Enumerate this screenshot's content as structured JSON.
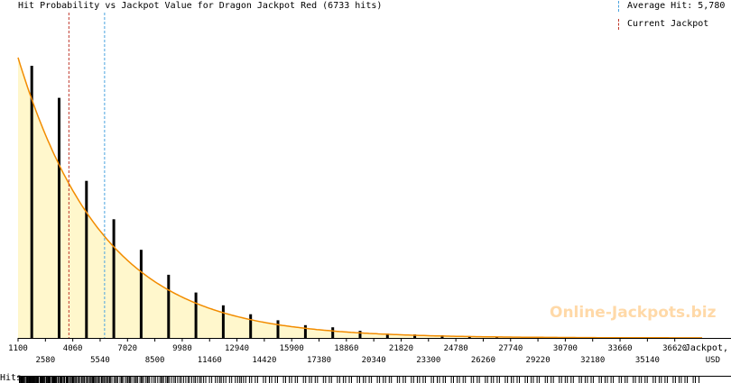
{
  "chart_data": {
    "type": "bar",
    "title": "Hit Probability vs Jackpot Value for Dragon Jackpot Red (6733 hits)",
    "xlabel_line1": "Jackpot,",
    "xlabel_line2": "USD",
    "x_range": [
      1100,
      38100
    ],
    "tick_labels_top": [
      "1100",
      "4060",
      "7020",
      "9980",
      "12940",
      "15900",
      "18860",
      "21820",
      "24780",
      "27740",
      "30700",
      "33660",
      "36620"
    ],
    "tick_labels_bottom": [
      "2580",
      "5540",
      "8500",
      "11460",
      "14420",
      "17380",
      "20340",
      "23300",
      "26260",
      "29220",
      "32180",
      "35140"
    ],
    "bars": [
      {
        "x": 1840,
        "p": 1.0
      },
      {
        "x": 3320,
        "p": 0.882
      },
      {
        "x": 4800,
        "p": 0.577
      },
      {
        "x": 6280,
        "p": 0.436
      },
      {
        "x": 7760,
        "p": 0.324
      },
      {
        "x": 9240,
        "p": 0.232
      },
      {
        "x": 10720,
        "p": 0.167
      },
      {
        "x": 12200,
        "p": 0.12
      },
      {
        "x": 13680,
        "p": 0.087
      },
      {
        "x": 15160,
        "p": 0.065
      },
      {
        "x": 16640,
        "p": 0.047
      },
      {
        "x": 18120,
        "p": 0.039
      },
      {
        "x": 19600,
        "p": 0.026
      },
      {
        "x": 21080,
        "p": 0.016
      },
      {
        "x": 22560,
        "p": 0.013
      },
      {
        "x": 24040,
        "p": 0.01
      },
      {
        "x": 25520,
        "p": 0.006
      },
      {
        "x": 27000,
        "p": 0.005
      },
      {
        "x": 28480,
        "p": 0.004
      },
      {
        "x": 29960,
        "p": 0.003
      },
      {
        "x": 31440,
        "p": 0.002
      },
      {
        "x": 32920,
        "p": 0.002
      },
      {
        "x": 34400,
        "p": 0.001
      },
      {
        "x": 35880,
        "p": 0.001
      },
      {
        "x": 37360,
        "p": 0.001
      }
    ],
    "fit_curve": {
      "start_x": 1100,
      "start_p": 1.0,
      "decay_per_usd": 0.000217
    },
    "average_hit": 5780,
    "current_jackpot": 3850,
    "hit_marks_x": [
      1150,
      1190,
      1230,
      1270,
      1310,
      1350,
      1390,
      1430,
      1470,
      1510,
      1550,
      1590,
      1630,
      1670,
      1710,
      1750,
      1790,
      1830,
      1870,
      1910,
      1950,
      1990,
      2030,
      2070,
      2110,
      2150,
      2190,
      2230,
      2270,
      2310,
      2350,
      2390,
      2430,
      2470,
      2510,
      2550,
      2590,
      2630,
      2670,
      2710,
      2750,
      2790,
      2830,
      2870,
      2910,
      2950,
      2990,
      3030,
      3070,
      3110,
      3150,
      3190,
      3230,
      3270,
      3310,
      3350,
      3390,
      3430,
      3470,
      3510,
      3550,
      3590,
      3630,
      3670,
      3710,
      3750,
      3790,
      3830,
      3870,
      3910,
      3950,
      3990,
      4030,
      4070,
      4110,
      4150,
      4190,
      4230,
      4270,
      4310,
      4350,
      4390,
      4430,
      4470,
      4510,
      4550,
      4590,
      4630,
      4670,
      4710,
      4750,
      4790,
      4830,
      4870,
      4910,
      4950,
      4990,
      5030,
      5070,
      5110,
      5150,
      5190,
      5230,
      5270,
      5310,
      5350,
      5390,
      5430,
      5470,
      5510,
      5550,
      5590,
      5630,
      5670,
      5710,
      5750,
      5790,
      5830,
      5870,
      5910,
      5950,
      5990,
      6030,
      6070,
      6110,
      6150,
      6190,
      6230,
      6270,
      6310,
      6350,
      6390,
      6430,
      6470,
      6510,
      6550,
      6590,
      6630,
      6670,
      6710,
      6750,
      6790,
      6830,
      6870,
      6910,
      6950,
      6990,
      7030,
      7070,
      7110,
      7150,
      7190,
      7230,
      7270,
      7310,
      7350,
      7390,
      7430,
      7470,
      7510,
      7550,
      7590,
      7630,
      7670,
      7710,
      7750,
      7790,
      7830,
      7870,
      7910,
      7950,
      7990,
      8030,
      8070,
      8110,
      8150,
      8190,
      8230,
      8270,
      8310,
      8350,
      8390,
      8430,
      8470,
      8510,
      8550,
      8590,
      8630,
      8670,
      8710,
      8750,
      8790,
      8830,
      8870,
      8910,
      8950,
      8990,
      9030,
      9070,
      9110,
      9150,
      9190,
      9230,
      9270,
      9310,
      9350,
      9390,
      9430,
      9470,
      9510,
      9550,
      9590,
      9630,
      9670,
      9710,
      9750,
      9790,
      9830,
      9870,
      9910,
      9950,
      9990,
      10030,
      10070,
      10110,
      10150,
      10190,
      10230,
      10270,
      10310,
      10350,
      10390,
      10430,
      10470,
      10510,
      10550,
      10590,
      10630,
      10670,
      10710,
      10750,
      10790,
      10830,
      10870,
      10910,
      10950,
      10990,
      11030,
      11070,
      11110,
      11150,
      11190,
      11230,
      11270,
      11310,
      11350,
      11390,
      11430,
      11470,
      11510,
      11550,
      11590,
      11630,
      11670,
      11710,
      11750,
      11790,
      11830,
      11870,
      11910,
      11950,
      11990,
      12030,
      12070,
      12110,
      12150,
      12190,
      12230,
      12270,
      12310,
      12350,
      12390,
      12430,
      12470,
      12510,
      12550,
      12590,
      12630,
      12670,
      12710,
      12750,
      12790,
      12830,
      12870,
      12910,
      12950,
      12990,
      13030,
      13070,
      13110,
      13150,
      13190,
      13230,
      13270,
      13310,
      13350,
      13390,
      13430,
      13470,
      13510,
      13550,
      13590,
      13630,
      13670,
      13710,
      13750,
      13790,
      13830,
      13870,
      13910,
      13950,
      13990,
      14030,
      14070,
      14110,
      14150,
      14190,
      14230,
      14270,
      14310,
      14350,
      14390,
      14430,
      14470,
      14510,
      14550,
      14590,
      14630,
      14670,
      14710,
      14750,
      14790,
      14830,
      14870,
      14910,
      14950,
      14990,
      15030,
      15070,
      15110,
      15150,
      15190,
      15230,
      15270,
      15310,
      15350,
      15390,
      15430,
      15470,
      15510,
      15550,
      15590,
      15630,
      15670,
      15710,
      15750,
      15790,
      15830,
      15870,
      15910,
      15950,
      15990,
      16030,
      16070,
      16110,
      16150,
      16190,
      16230,
      16270,
      16310,
      16350,
      16390,
      16430,
      16470,
      16510,
      16550,
      16590,
      16630,
      16670,
      16710,
      16750,
      16790,
      16830,
      16870,
      16910,
      16950,
      16990,
      17030,
      17070,
      17110,
      17150,
      17190,
      17230,
      17270,
      17310,
      17350,
      17390,
      17430,
      17470,
      17510,
      17550,
      17590,
      17630,
      17670,
      17710,
      17750,
      17790,
      17830,
      17870,
      17910,
      17950,
      17990,
      18030,
      18070,
      18110,
      18150,
      18190,
      18230,
      18270,
      18310,
      18350,
      18390,
      18430,
      18470,
      18510,
      18550,
      18590,
      18630,
      18670,
      18710,
      18750,
      18790,
      18830,
      18870,
      18910,
      18950,
      18990,
      19030,
      19070,
      19110,
      19150,
      19190,
      19230,
      19270,
      19310,
      19350,
      19390,
      19430,
      19470,
      19510,
      19550,
      19590,
      19630,
      19670,
      19710,
      19750,
      19790,
      19830,
      19870,
      19910,
      19950,
      19990,
      20030,
      20070,
      20110,
      20150,
      20190,
      20230,
      20270,
      20310,
      20350,
      20390,
      20430,
      20470,
      20510,
      20550,
      20590,
      20630,
      20670,
      20710,
      20750,
      20790,
      20830,
      20870,
      20910,
      20950,
      20990,
      21030,
      21070,
      21110,
      21150,
      21190,
      21230,
      21270,
      21310,
      21350,
      21390,
      21430,
      21470,
      21510,
      21550,
      21590,
      21630,
      21670,
      21710,
      21750,
      21790,
      21830,
      21870,
      21910,
      21950,
      21990,
      22030,
      22070,
      22110,
      22150,
      22190,
      22230,
      22270,
      22310,
      22350,
      22390,
      22430,
      22470,
      22510,
      22550,
      22590,
      22630,
      22670,
      22710,
      22750,
      22790,
      22830,
      22870,
      22910,
      22950,
      22990,
      23030,
      23070,
      23110,
      23150,
      23190,
      23230,
      23270,
      23310,
      23350,
      23390,
      23430,
      23470,
      23510,
      23550,
      23590,
      23630,
      23670,
      23710,
      23750,
      23790,
      23830,
      23870,
      23910,
      23950,
      23990,
      24030,
      24070,
      24110,
      24150,
      24190,
      24230,
      24270,
      24310,
      24350,
      24390,
      24430,
      24470,
      24510,
      24550,
      24590,
      24630,
      24670,
      24710,
      24750,
      24790,
      24830,
      24870,
      24910,
      24950,
      24990,
      25030,
      25070,
      25110,
      25150,
      25190,
      25230,
      25270,
      25310,
      25350,
      25390,
      25430,
      25470,
      25510,
      25550,
      25590,
      25630,
      25670,
      25710,
      25750,
      25790,
      25830,
      25870,
      25910,
      25950,
      25990,
      26030,
      26070,
      26110,
      26150,
      26190,
      26230,
      26270,
      26310,
      26350,
      26390,
      26430,
      26470,
      26510,
      26550,
      26590,
      26630,
      26670,
      26710,
      26750,
      26790,
      26830,
      26870,
      26910,
      26950,
      26990,
      27030,
      27070,
      27110,
      27150,
      27190,
      27230,
      27270,
      27310,
      27350,
      27390,
      27430,
      27470,
      27510,
      27550,
      27590,
      27630,
      27670,
      27710,
      27750,
      27790,
      27830,
      27870,
      27910,
      27950,
      27990,
      28030,
      28070,
      28110,
      28150,
      28190,
      28230,
      28270,
      28310,
      28350,
      28390,
      28430,
      28470,
      28510,
      28550,
      28590,
      28630,
      28670,
      28710,
      28750,
      28790,
      28830,
      28870,
      28910,
      28950,
      28990,
      29030,
      29070,
      29110,
      29150,
      29190,
      29230,
      29270,
      29310,
      29350,
      29390,
      29430,
      29470,
      29510,
      29550,
      29590,
      29630,
      29670,
      29710,
      29750,
      29790,
      29830,
      29870,
      29910,
      29950,
      29990,
      30030,
      30070,
      30110,
      30150,
      30190,
      30230,
      30270,
      30310,
      30350,
      30390,
      30430,
      30470,
      30510,
      30550,
      30590,
      30630,
      30670,
      30710,
      30750,
      30790,
      30830,
      30870,
      30910,
      30950,
      30990,
      31030,
      31070,
      31110,
      31150,
      31190,
      31230,
      31270,
      31310,
      31350,
      31390,
      31430,
      31470,
      31510,
      31550,
      31590,
      31630,
      31670,
      31710,
      31750,
      31790,
      31830,
      31870,
      31910,
      31950,
      31990,
      32030,
      32070,
      32110,
      32150,
      32190,
      32230,
      32270,
      32310,
      32350,
      32390,
      32430,
      32470,
      32510,
      32550,
      32590,
      32630,
      32670,
      32710,
      32750,
      32790,
      32830,
      32870,
      32910,
      32950,
      32990,
      33030,
      33070,
      33110,
      33150,
      33190,
      33230,
      33270,
      33310,
      33350,
      33390,
      33430,
      33470,
      33510,
      33550,
      33590,
      33630,
      33670,
      33710,
      33750,
      33790,
      33830,
      33870,
      33910,
      33950,
      33990,
      34030,
      34070,
      34110,
      34150,
      34190,
      34230,
      34270,
      34310,
      34350,
      34390,
      34430,
      34470,
      34510,
      34550,
      34590,
      34630,
      34670,
      34710,
      34750,
      34790,
      34830,
      34870,
      34910,
      34950,
      34990,
      35030,
      35070,
      35110,
      35150,
      35190,
      35230,
      35270,
      35310,
      35350,
      35390,
      35430,
      35470,
      35510,
      35550,
      35590,
      35630,
      35670,
      35710,
      35750,
      35790,
      35830,
      35870,
      35910,
      35950,
      35990,
      36030,
      36070,
      36110,
      36150,
      36190,
      36230,
      36270,
      36310,
      36350,
      36390,
      36430,
      36470,
      36510,
      36550,
      36590,
      36630,
      36670,
      36710,
      36750,
      36790,
      36830,
      36870,
      36910,
      36950,
      36990,
      37030,
      37070,
      37110,
      37150,
      37190,
      37230,
      37270,
      37310,
      37350,
      37390,
      37430,
      37470,
      37510,
      37550,
      37590,
      37630,
      37670,
      37710,
      37750,
      37790,
      37830,
      37870,
      37910,
      37950,
      37990
    ],
    "legend": [
      {
        "label": "Average Hit: 5,780",
        "color": "#4aa3df"
      },
      {
        "label": "Current Jackpot",
        "color": "#c0392b"
      }
    ]
  },
  "hits_label": "Hits",
  "watermark": "Online-Jackpots.biz",
  "colors": {
    "fill": "#fff7cc",
    "curve": "#f28c00",
    "bar": "#000000",
    "axis": "#000000",
    "average": "#4aa3df",
    "current": "#c0392b",
    "watermark": "#ffd9a8"
  }
}
